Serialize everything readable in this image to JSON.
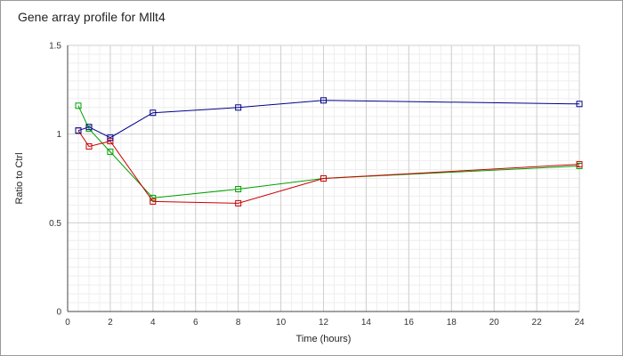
{
  "title": "Gene array profile for Mllt4",
  "chart_data": {
    "type": "line",
    "title": "Gene array profile for Mllt4",
    "xlabel": "Time (hours)",
    "ylabel": "Ratio to Ctrl",
    "xlim": [
      0,
      24
    ],
    "ylim": [
      0,
      1.5
    ],
    "xticks": [
      0,
      2,
      4,
      6,
      8,
      10,
      12,
      14,
      16,
      18,
      20,
      22,
      24
    ],
    "yticks": [
      0,
      0.5,
      1,
      1.5
    ],
    "ytick_labels": [
      "0",
      "0.5",
      "1",
      "1.5"
    ],
    "grid": true,
    "legend": "none",
    "series": [
      {
        "color": "#00a000",
        "x": [
          0.5,
          1,
          2,
          4,
          8,
          12,
          24
        ],
        "y": [
          1.16,
          1.03,
          0.9,
          0.64,
          0.69,
          0.75,
          0.82
        ]
      },
      {
        "color": "#cc0000",
        "x": [
          0.5,
          1,
          2,
          4,
          8,
          12,
          24
        ],
        "y": [
          1.02,
          0.93,
          0.96,
          0.62,
          0.61,
          0.75,
          0.83
        ]
      },
      {
        "color": "#00008b",
        "x": [
          0.5,
          1,
          2,
          4,
          8,
          12,
          24
        ],
        "y": [
          1.02,
          1.04,
          0.98,
          1.12,
          1.15,
          1.19,
          1.17
        ]
      }
    ]
  }
}
